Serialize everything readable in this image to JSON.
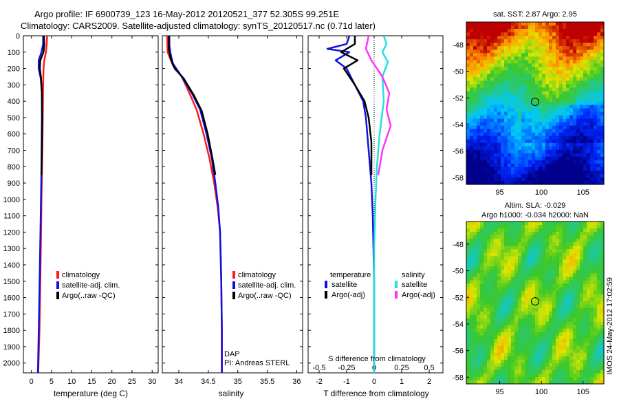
{
  "figure": {
    "title_line1": "Argo profile: IF 6900739_123 16-May-2012 20120521_377 52.305S 99.251E",
    "title_line2": "Climatology: CARS2009. Satellite-adjusted climatology: synTS_20120517.nc (0.71d later)",
    "side_stamp": "IMOS 24-May-2012 17:02:59",
    "dap_label": "DAP",
    "pi_label": "PI: Andreas STERL"
  },
  "colors": {
    "climatology": "#ff1a1a",
    "satellite": "#1010e0",
    "argo": "#000000",
    "sat_diff": "#22e0e0",
    "argo_sal_diff": "#ff33ff"
  },
  "chart_data": [
    {
      "id": "temperature",
      "type": "line",
      "xlabel": "temperature (deg C)",
      "xticks": [
        0,
        5,
        10,
        15,
        20,
        25,
        30
      ],
      "xlim": [
        -2,
        31.5
      ],
      "yticks": [
        0,
        100,
        200,
        300,
        400,
        500,
        600,
        700,
        800,
        900,
        1000,
        1100,
        1200,
        1300,
        1400,
        1500,
        1600,
        1700,
        1800,
        1900,
        2000
      ],
      "ylim": [
        0,
        2060
      ],
      "yreversed": true,
      "legend": [
        "climatology",
        "satellite-adj. clim.",
        "Argo(..raw -QC)"
      ],
      "series": [
        {
          "name": "climatology",
          "color_key": "climatology",
          "points": [
            [
              3.9,
              0
            ],
            [
              3.8,
              50
            ],
            [
              3.6,
              100
            ],
            [
              3.2,
              150
            ],
            [
              3.0,
              200
            ],
            [
              2.9,
              300
            ],
            [
              2.8,
              500
            ],
            [
              2.7,
              700
            ],
            [
              2.5,
              1000
            ],
            [
              2.4,
              1200
            ],
            [
              2.2,
              1500
            ],
            [
              2.0,
              1800
            ],
            [
              1.7,
              2060
            ]
          ]
        },
        {
          "name": "satellite-adj. clim.",
          "color_key": "satellite",
          "points": [
            [
              2.9,
              0
            ],
            [
              2.9,
              50
            ],
            [
              2.5,
              100
            ],
            [
              1.8,
              150
            ],
            [
              1.8,
              200
            ],
            [
              2.3,
              260
            ],
            [
              2.6,
              350
            ],
            [
              2.6,
              500
            ],
            [
              2.5,
              800
            ],
            [
              2.3,
              1100
            ],
            [
              2.1,
              1400
            ],
            [
              1.9,
              1700
            ],
            [
              1.6,
              2060
            ]
          ]
        },
        {
          "name": "Argo(..raw -QC)",
          "color_key": "argo",
          "points": [
            [
              3.1,
              0
            ],
            [
              3.2,
              50
            ],
            [
              3.0,
              100
            ],
            [
              2.2,
              150
            ],
            [
              2.1,
              200
            ],
            [
              2.4,
              260
            ],
            [
              2.6,
              350
            ],
            [
              2.7,
              500
            ],
            [
              2.6,
              700
            ],
            [
              2.5,
              850
            ]
          ]
        }
      ]
    },
    {
      "id": "salinity",
      "type": "line",
      "xlabel": "salinity",
      "xticks": [
        34,
        34.5,
        35,
        35.5,
        36
      ],
      "xlim": [
        33.72,
        36.1
      ],
      "yticks": [
        0,
        100,
        200,
        300,
        400,
        500,
        600,
        700,
        800,
        900,
        1000,
        1100,
        1200,
        1300,
        1400,
        1500,
        1600,
        1700,
        1800,
        1900,
        2000
      ],
      "ylim": [
        0,
        2060
      ],
      "yreversed": true,
      "legend": [
        "climatology",
        "satellite-adj. clim.",
        "Argo(..raw -QC)"
      ],
      "series": [
        {
          "name": "climatology",
          "color_key": "climatology",
          "points": [
            [
              33.8,
              0
            ],
            [
              33.81,
              100
            ],
            [
              33.9,
              180
            ],
            [
              34.05,
              250
            ],
            [
              34.18,
              350
            ],
            [
              34.3,
              450
            ],
            [
              34.42,
              600
            ],
            [
              34.52,
              750
            ],
            [
              34.6,
              900
            ],
            [
              34.66,
              1050
            ],
            [
              34.7,
              1200
            ],
            [
              34.72,
              1500
            ],
            [
              34.73,
              1800
            ],
            [
              34.73,
              2060
            ]
          ]
        },
        {
          "name": "satellite-adj. clim.",
          "color_key": "satellite",
          "points": [
            [
              33.84,
              0
            ],
            [
              33.84,
              60
            ],
            [
              33.86,
              110
            ],
            [
              33.9,
              170
            ],
            [
              34.05,
              250
            ],
            [
              34.22,
              350
            ],
            [
              34.36,
              450
            ],
            [
              34.47,
              600
            ],
            [
              34.56,
              750
            ],
            [
              34.62,
              900
            ],
            [
              34.67,
              1050
            ],
            [
              34.7,
              1200
            ],
            [
              34.72,
              1500
            ],
            [
              34.73,
              1800
            ],
            [
              34.73,
              2060
            ]
          ]
        },
        {
          "name": "Argo(..raw -QC)",
          "color_key": "argo",
          "points": [
            [
              33.83,
              0
            ],
            [
              33.83,
              80
            ],
            [
              33.86,
              140
            ],
            [
              33.93,
              200
            ],
            [
              34.08,
              260
            ],
            [
              34.25,
              360
            ],
            [
              34.39,
              460
            ],
            [
              34.49,
              600
            ],
            [
              34.57,
              750
            ],
            [
              34.62,
              850
            ]
          ]
        }
      ]
    },
    {
      "id": "difference",
      "type": "line",
      "xlabel": "T difference from climatology",
      "xticks": [
        -2,
        -1,
        0,
        1,
        2
      ],
      "xlim": [
        -2.4,
        2.5
      ],
      "top_axis_label": "S difference from climatology",
      "top_xticks": [
        "-0.5",
        "-0.25",
        "0",
        "0.25",
        "0.5"
      ],
      "yticks": [
        0,
        100,
        200,
        300,
        400,
        500,
        600,
        700,
        800,
        900,
        1000,
        1100,
        1200,
        1300,
        1400,
        1500,
        1600,
        1700,
        1800,
        1900,
        2000
      ],
      "ylim": [
        0,
        2060
      ],
      "yreversed": true,
      "legend_left_title": "temperature",
      "legend_right_title": "salinity",
      "legend": [
        "satellite",
        "Argo(-adj)",
        "satellite",
        "Argo(-adj)"
      ],
      "series": [
        {
          "name": "temperature satellite",
          "color_key": "satellite",
          "points": [
            [
              -0.9,
              0
            ],
            [
              -1.0,
              50
            ],
            [
              -1.7,
              80
            ],
            [
              -0.9,
              100
            ],
            [
              -1.4,
              150
            ],
            [
              -1.0,
              200
            ],
            [
              -0.7,
              300
            ],
            [
              -0.4,
              400
            ],
            [
              -0.3,
              500
            ],
            [
              -0.2,
              700
            ],
            [
              -0.1,
              900
            ],
            [
              -0.05,
              1100
            ],
            [
              0,
              1500
            ],
            [
              0,
              2060
            ]
          ]
        },
        {
          "name": "temperature Argo(-adj)",
          "color_key": "argo",
          "points": [
            [
              -0.7,
              0
            ],
            [
              -0.7,
              50
            ],
            [
              -1.2,
              100
            ],
            [
              -0.6,
              150
            ],
            [
              -1.1,
              200
            ],
            [
              -0.7,
              300
            ],
            [
              -0.35,
              400
            ],
            [
              -0.2,
              500
            ],
            [
              -0.1,
              650
            ],
            [
              -0.1,
              850
            ]
          ]
        },
        {
          "name": "salinity satellite",
          "color_key": "sat_diff",
          "points": [
            [
              0.35,
              0
            ],
            [
              0.45,
              50
            ],
            [
              0.3,
              100
            ],
            [
              0.5,
              160
            ],
            [
              0.3,
              250
            ],
            [
              0.35,
              400
            ],
            [
              0.2,
              600
            ],
            [
              0.1,
              800
            ],
            [
              0.05,
              1000
            ],
            [
              0,
              1300
            ],
            [
              0,
              2060
            ]
          ]
        },
        {
          "name": "salinity Argo(-adj)",
          "color_key": "argo_sal_diff",
          "points": [
            [
              -0.2,
              0
            ],
            [
              -0.3,
              80
            ],
            [
              -0.1,
              150
            ],
            [
              0.3,
              250
            ],
            [
              0.55,
              350
            ],
            [
              0.45,
              450
            ],
            [
              0.6,
              550
            ],
            [
              0.3,
              700
            ],
            [
              0.15,
              850
            ]
          ]
        }
      ]
    }
  ],
  "maps": [
    {
      "id": "sst-map",
      "title": "sat. SST: 2.87 Argo: 2.95",
      "xticks": [
        "95",
        "100",
        "105"
      ],
      "yticks": [
        "-48",
        "-50",
        "-52",
        "-54",
        "-56",
        "-58"
      ],
      "xlim": [
        91,
        107.5
      ],
      "ylim": [
        -58.5,
        -46.3
      ],
      "marker": [
        99.25,
        -52.3
      ]
    },
    {
      "id": "sla-map",
      "title_line1": "Altim. SLA: -0.029",
      "title_line2": "Argo h1000: -0.034 h2000: NaN",
      "xticks": [
        "95",
        "100",
        "105"
      ],
      "yticks": [
        "-48",
        "-50",
        "-52",
        "-54",
        "-56",
        "-58"
      ],
      "xlim": [
        91,
        107.5
      ],
      "ylim": [
        -58.5,
        -46.3
      ],
      "marker": [
        99.25,
        -52.3
      ]
    }
  ]
}
